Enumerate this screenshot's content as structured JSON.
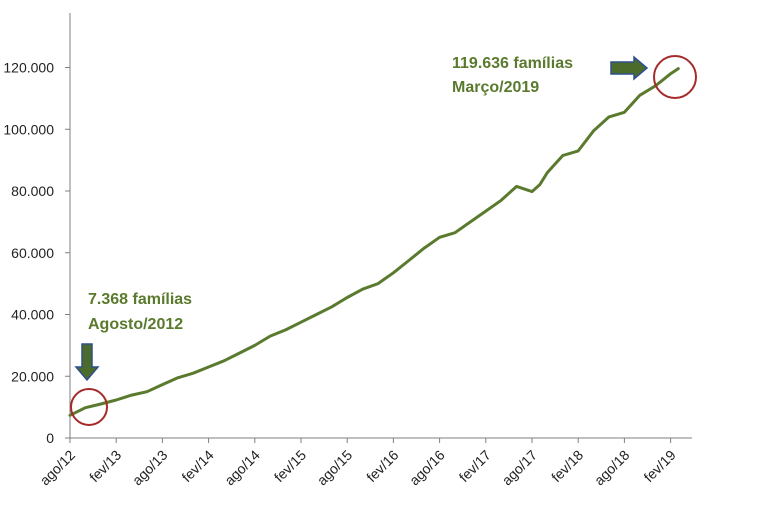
{
  "colors": {
    "line": "#5a7a2e",
    "annotation_text": "#5a7a2e",
    "circle": "#a52a2a",
    "arrow_fill": "#4a6b2a",
    "arrow_stroke": "#2f4f8f",
    "axis": "#7f7f7f"
  },
  "chart_data": {
    "type": "line",
    "title": "",
    "xlabel": "",
    "ylabel": "",
    "ylim": [
      0,
      130000
    ],
    "grid": false,
    "legend": "none",
    "yticks": [
      0,
      20000,
      40000,
      60000,
      80000,
      100000,
      120000
    ],
    "ytick_labels": [
      "0",
      "20.000",
      "40.000",
      "60.000",
      "80.000",
      "100.000",
      "120.000"
    ],
    "xtick_labels": [
      "ago/12",
      "fev/13",
      "ago/13",
      "fev/14",
      "ago/14",
      "fev/15",
      "ago/15",
      "fev/16",
      "ago/16",
      "fev/17",
      "ago/17",
      "fev/18",
      "ago/18",
      "fev/19"
    ],
    "x": [
      "2012-08",
      "2012-10",
      "2012-12",
      "2013-02",
      "2013-04",
      "2013-06",
      "2013-08",
      "2013-10",
      "2013-12",
      "2014-02",
      "2014-04",
      "2014-06",
      "2014-08",
      "2014-10",
      "2014-12",
      "2015-02",
      "2015-04",
      "2015-06",
      "2015-08",
      "2015-10",
      "2015-12",
      "2016-02",
      "2016-04",
      "2016-06",
      "2016-08",
      "2016-10",
      "2016-12",
      "2017-02",
      "2017-04",
      "2017-06",
      "2017-08",
      "2017-09",
      "2017-10",
      "2017-12",
      "2018-02",
      "2018-04",
      "2018-06",
      "2018-08",
      "2018-10",
      "2018-12",
      "2019-01",
      "2019-02",
      "2019-03"
    ],
    "series": [
      {
        "values": [
          7368,
          9800,
          11000,
          12300,
          13900,
          15000,
          17300,
          19500,
          21000,
          23000,
          25000,
          27500,
          30000,
          33000,
          35000,
          37500,
          40000,
          42500,
          45500,
          48200,
          50000,
          53500,
          57500,
          61500,
          65000,
          66500,
          70000,
          73500,
          77000,
          81500,
          79800,
          82000,
          86000,
          91500,
          93000,
          99500,
          104000,
          105500,
          111000,
          114000,
          116000,
          118000,
          119636
        ]
      }
    ],
    "annotations": [
      {
        "line1": "7.368 famílias",
        "line2": "Agosto/2012",
        "x": "2012-08",
        "y": 7368
      },
      {
        "line1": "119.636 famílias",
        "line2": "Março/2019",
        "x": "2019-03",
        "y": 119636
      }
    ]
  }
}
